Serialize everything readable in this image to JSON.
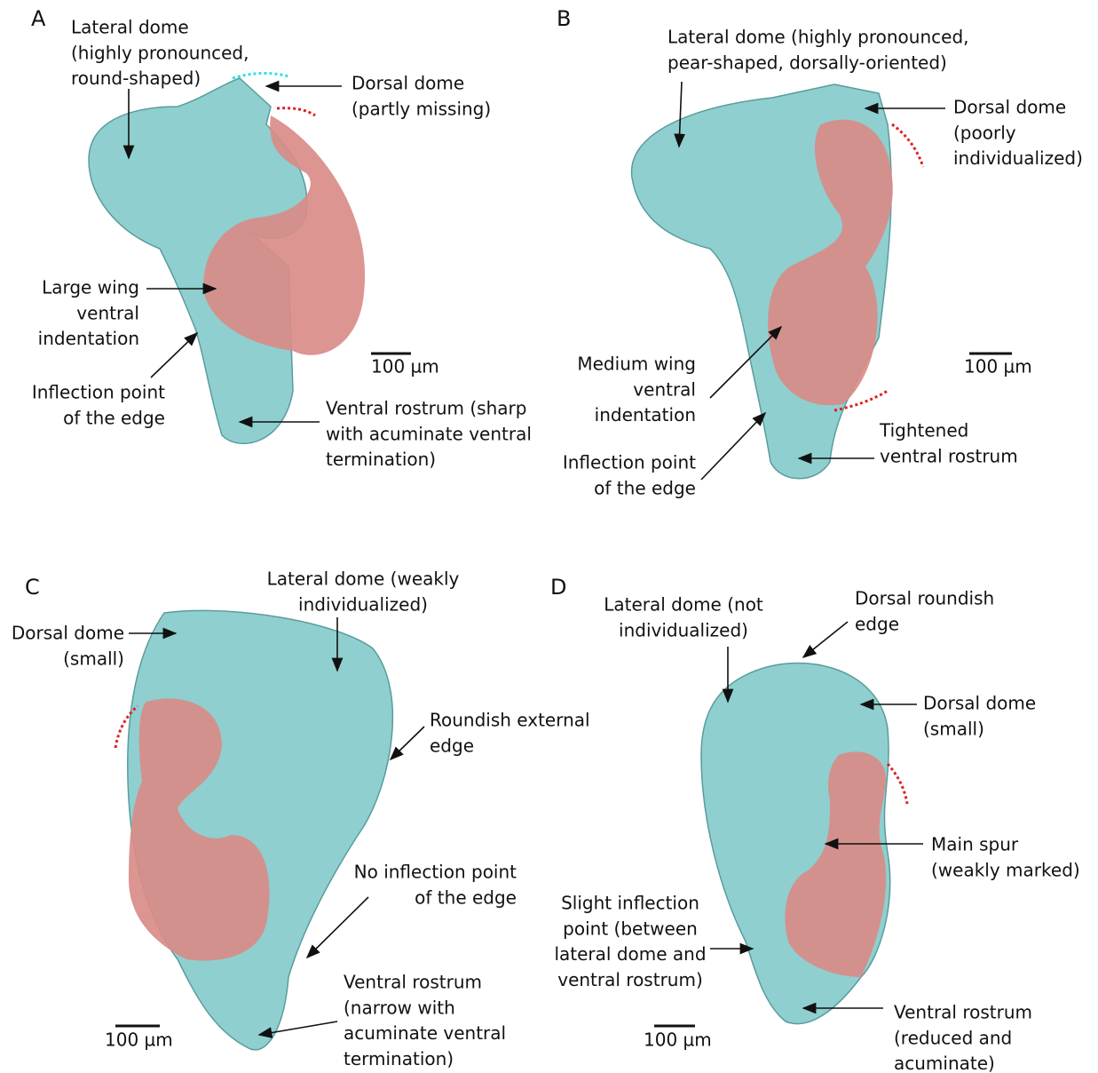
{
  "panels": [
    {
      "label": "A",
      "scale": "100 µm",
      "annotations": [
        {
          "lines": [
            "Lateral dome",
            "(highly pronounced,",
            "round-shaped)"
          ]
        },
        {
          "lines": [
            "Dorsal dome",
            "(partly missing)"
          ]
        },
        {
          "lines": [
            "Large wing",
            "ventral",
            "indentation"
          ]
        },
        {
          "lines": [
            "Inflection point",
            "of the edge"
          ]
        },
        {
          "lines": [
            "Ventral rostrum (sharp",
            "with acuminate ventral",
            "termination)"
          ]
        }
      ]
    },
    {
      "label": "B",
      "scale": "100 µm",
      "annotations": [
        {
          "lines": [
            "Lateral dome (highly pronounced,",
            "pear-shaped, dorsally-oriented)"
          ]
        },
        {
          "lines": [
            "Dorsal dome",
            "(poorly",
            "individualized)"
          ]
        },
        {
          "lines": [
            "Medium wing",
            "ventral",
            "indentation"
          ]
        },
        {
          "lines": [
            "Inflection point",
            "of the edge"
          ]
        },
        {
          "lines": [
            "Tightened",
            "ventral rostrum"
          ]
        }
      ]
    },
    {
      "label": "C",
      "scale": "100 µm",
      "annotations": [
        {
          "lines": [
            "Lateral dome (weakly",
            "individualized)"
          ]
        },
        {
          "lines": [
            "Dorsal dome",
            "(small)"
          ]
        },
        {
          "lines": [
            "Roundish external",
            "edge"
          ]
        },
        {
          "lines": [
            "No inflection point",
            "of the edge"
          ]
        },
        {
          "lines": [
            "Ventral rostrum",
            "(narrow with",
            "acuminate ventral",
            "termination)"
          ]
        }
      ]
    },
    {
      "label": "D",
      "scale": "100 µm",
      "annotations": [
        {
          "lines": [
            "Lateral dome (not",
            "individualized)"
          ]
        },
        {
          "lines": [
            "Dorsal roundish",
            "edge"
          ]
        },
        {
          "lines": [
            "Dorsal dome",
            "(small)"
          ]
        },
        {
          "lines": [
            "Main spur",
            "(weakly marked)"
          ]
        },
        {
          "lines": [
            "Slight inflection",
            "point (between",
            "lateral dome and",
            "ventral rostrum)"
          ]
        },
        {
          "lines": [
            "Ventral rostrum",
            "(reduced and",
            "acuminate)"
          ]
        }
      ]
    }
  ]
}
